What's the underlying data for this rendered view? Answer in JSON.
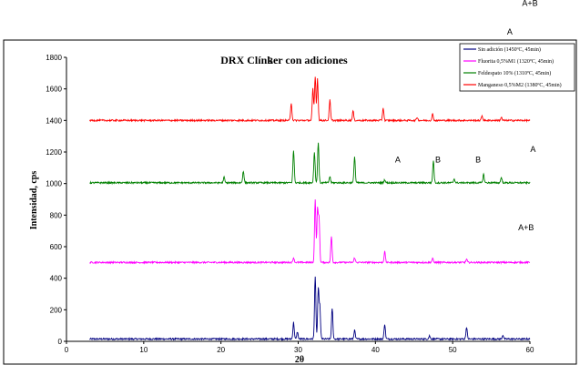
{
  "chart_data": {
    "type": "line",
    "title": "DRX Clínker con adiciones",
    "xlabel": "2θ",
    "ylabel": "Intensidad, cps",
    "xlim": [
      0,
      60
    ],
    "ylim": [
      0,
      1800
    ],
    "xticks": [
      0,
      10,
      20,
      30,
      40,
      50,
      60
    ],
    "yticks": [
      0,
      200,
      400,
      600,
      800,
      1000,
      1200,
      1400,
      1600,
      1800
    ],
    "grid": false,
    "legend_position": "top-right",
    "series": [
      {
        "name": "Sin adición (1450ºC, 45min)",
        "color": "#000080",
        "baseline": 15,
        "peaks": [
          [
            29.4,
            105
          ],
          [
            29.9,
            45
          ],
          [
            32.2,
            395
          ],
          [
            32.6,
            310
          ],
          [
            32.8,
            200
          ],
          [
            34.4,
            195
          ],
          [
            37.3,
            55
          ],
          [
            41.2,
            95
          ],
          [
            47.0,
            20
          ],
          [
            51.8,
            75
          ],
          [
            56.5,
            25
          ]
        ]
      },
      {
        "name": "Fluorita 0,5%M1 (1320ºC, 45min)",
        "color": "#ff00ff",
        "baseline": 500,
        "peaks": [
          [
            29.4,
            30
          ],
          [
            32.2,
            395
          ],
          [
            32.5,
            330
          ],
          [
            32.7,
            280
          ],
          [
            34.3,
            165
          ],
          [
            37.3,
            30
          ],
          [
            41.2,
            70
          ],
          [
            47.4,
            25
          ],
          [
            51.8,
            20
          ]
        ]
      },
      {
        "name": "Feldespato 10% (1310ºC, 45min)",
        "color": "#008000",
        "baseline": 1005,
        "peaks": [
          [
            20.4,
            35
          ],
          [
            22.9,
            75
          ],
          [
            29.4,
            205
          ],
          [
            32.1,
            195
          ],
          [
            32.6,
            255
          ],
          [
            34.1,
            40
          ],
          [
            37.3,
            165
          ],
          [
            41.2,
            20
          ],
          [
            47.5,
            140
          ],
          [
            50.2,
            25
          ],
          [
            54.0,
            55
          ],
          [
            56.3,
            35
          ]
        ]
      },
      {
        "name": "Manganeso 0,5%M2 (1380ºC, 45min)",
        "color": "#ff0000",
        "baseline": 1400,
        "peaks": [
          [
            29.1,
            110
          ],
          [
            31.9,
            200
          ],
          [
            32.2,
            275
          ],
          [
            32.5,
            265
          ],
          [
            34.1,
            130
          ],
          [
            37.1,
            60
          ],
          [
            41.0,
            80
          ],
          [
            45.4,
            20
          ],
          [
            47.4,
            40
          ],
          [
            53.8,
            30
          ],
          [
            56.3,
            20
          ]
        ]
      }
    ],
    "annotations": [
      {
        "text": "A+B",
        "x": 60,
        "y": 2125
      },
      {
        "text": "A",
        "x": 57.4,
        "y": 1945
      },
      {
        "text": "B",
        "x": 26.4,
        "y": 1760
      },
      {
        "text": "A",
        "x": 60.4,
        "y": 1200
      },
      {
        "text": "A",
        "x": 42.9,
        "y": 1135
      },
      {
        "text": "B",
        "x": 48.1,
        "y": 1135
      },
      {
        "text": "B",
        "x": 53.3,
        "y": 1135
      },
      {
        "text": "A+B",
        "x": 59.5,
        "y": 705
      }
    ]
  }
}
